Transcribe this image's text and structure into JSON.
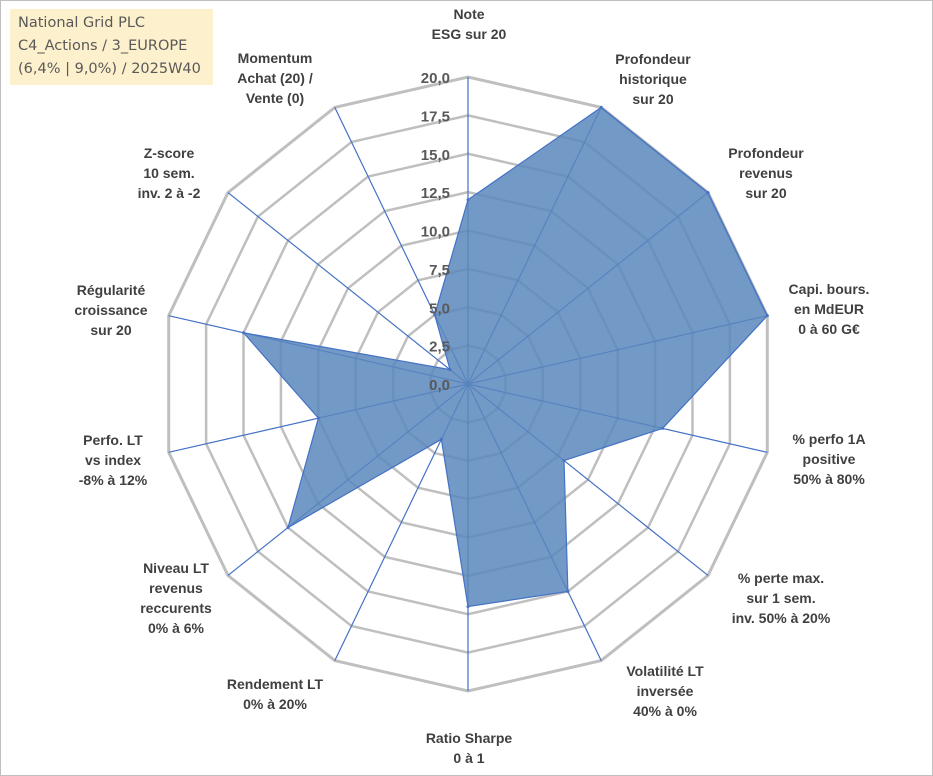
{
  "header": {
    "line1": "National Grid PLC",
    "line2": "C4_Actions / 3_EUROPE",
    "line3": "(6,4% | 9,0%) / 2025W40"
  },
  "colors": {
    "fill": "#5b87bd",
    "axis": "#4472c4",
    "grid": "#bfbfbf",
    "title_bg": "#fdf0cc"
  },
  "chart_data": {
    "type": "radar",
    "title": "National Grid PLC",
    "range": [
      0,
      20
    ],
    "tick_step": 2.5,
    "tick_labels": [
      "0,0",
      "2,5",
      "5,0",
      "7,5",
      "10,0",
      "12,5",
      "15,0",
      "17,5",
      "20,0"
    ],
    "axes": [
      {
        "label": [
          "Note",
          "ESG sur 20"
        ],
        "value": 12
      },
      {
        "label": [
          "Profondeur",
          "historique",
          "sur 20"
        ],
        "value": 20
      },
      {
        "label": [
          "Profondeur",
          "revenus",
          "sur 20"
        ],
        "value": 20
      },
      {
        "label": [
          "Capi. bours.",
          "en MdEUR",
          "0 à 60 G€"
        ],
        "value": 20
      },
      {
        "label": [
          "% perfo 1A",
          "positive",
          "50% à 80%"
        ],
        "value": 13
      },
      {
        "label": [
          "% perte max.",
          "sur 1 sem.",
          "inv. 50% à 20%"
        ],
        "value": 8
      },
      {
        "label": [
          "Volatilité LT",
          "inversée",
          "40% à 0%"
        ],
        "value": 15
      },
      {
        "label": [
          "Ratio Sharpe",
          "0 à 1"
        ],
        "value": 14.5
      },
      {
        "label": [
          "Rendement LT",
          "0% à 20%"
        ],
        "value": 4
      },
      {
        "label": [
          "Niveau LT",
          "revenus",
          "reccurents",
          "0% à 6%"
        ],
        "value": 15
      },
      {
        "label": [
          "Perfo. LT",
          "vs index",
          "-8% à 12%"
        ],
        "value": 10
      },
      {
        "label": [
          "Régularité",
          "croissance",
          "sur 20"
        ],
        "value": 15
      },
      {
        "label": [
          "Z-score",
          "10 sem.",
          "inv. 2 à -2"
        ],
        "value": 1.5
      },
      {
        "label": [
          "Momentum",
          "Achat (20) /",
          "Vente (0)"
        ],
        "value": 5
      }
    ]
  }
}
